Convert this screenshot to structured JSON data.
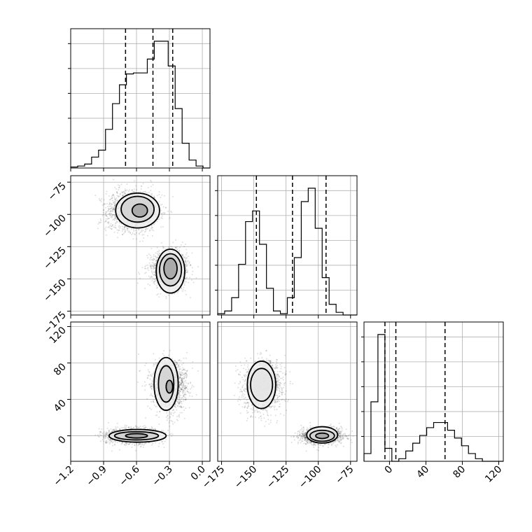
{
  "chart_data": {
    "type": "corner",
    "parameters": [
      {
        "range": [
          -1.2,
          0.07
        ],
        "ticks": [
          -1.2,
          -0.9,
          -0.6,
          -0.3,
          0.0
        ],
        "tick_labels": [
          "−1.2",
          "−0.9",
          "−0.6",
          "−0.3",
          "0.0"
        ],
        "quantiles": [
          -0.7,
          -0.45,
          -0.27
        ]
      },
      {
        "range": [
          -178,
          -70
        ],
        "ticks": [
          -175,
          -150,
          -125,
          -100,
          -75
        ],
        "tick_labels": [
          "−175",
          "−150",
          "−125",
          "−100",
          "−75"
        ],
        "quantiles": [
          -148,
          -120,
          -94
        ]
      },
      {
        "range": [
          -28,
          125
        ],
        "ticks": [
          0,
          40,
          80,
          120
        ],
        "tick_labels": [
          "0",
          "40",
          "80",
          "120"
        ],
        "quantiles": [
          -5,
          7,
          61
        ]
      }
    ],
    "histograms": [
      {
        "edges_start": -1.2,
        "bin_width": 0.0635,
        "counts": [
          1,
          2,
          4,
          11,
          18,
          39,
          65,
          84,
          95,
          96,
          96,
          110,
          128,
          128,
          103,
          60,
          25,
          8,
          2,
          0
        ]
      },
      {
        "edges_start": -178,
        "bin_width": 5.4,
        "counts": [
          1,
          3,
          13,
          38,
          70,
          78,
          53,
          20,
          3,
          1,
          13,
          43,
          85,
          95,
          65,
          28,
          8,
          2,
          0,
          0
        ]
      },
      {
        "edges_start": -28,
        "bin_width": 7.65,
        "counts": [
          3,
          23,
          49,
          5,
          0,
          1,
          4,
          7,
          10,
          13,
          15,
          15,
          12,
          9,
          6,
          3,
          1,
          0,
          0,
          0
        ]
      }
    ],
    "clusters": [
      {
        "mean": [
          -0.63,
          -97,
          0
        ],
        "sd": [
          0.12,
          8,
          4
        ]
      },
      {
        "mean": [
          -0.3,
          -143,
          55
        ],
        "sd": [
          0.08,
          7,
          13
        ]
      }
    ],
    "contours": {
      "1-0": [
        {
          "c": [
            -0.59,
            -97
          ],
          "r": [
            0.2,
            13.5
          ]
        },
        {
          "c": [
            -0.59,
            -96
          ],
          "r": [
            0.15,
            10
          ]
        },
        {
          "c": [
            -0.57,
            -97
          ],
          "r": [
            0.07,
            5
          ]
        },
        {
          "c": [
            -0.29,
            -144
          ],
          "r": [
            0.13,
            17
          ]
        },
        {
          "c": [
            -0.29,
            -143
          ],
          "r": [
            0.1,
            12.5
          ]
        },
        {
          "c": [
            -0.29,
            -142
          ],
          "r": [
            0.06,
            8
          ]
        }
      ],
      "2-0": [
        {
          "c": [
            -0.59,
            0
          ],
          "r": [
            0.26,
            7
          ]
        },
        {
          "c": [
            -0.6,
            0
          ],
          "r": [
            0.2,
            4.5
          ]
        },
        {
          "c": [
            -0.6,
            0
          ],
          "r": [
            0.1,
            2.4
          ]
        },
        {
          "c": [
            -0.33,
            57
          ],
          "r": [
            0.11,
            29
          ]
        },
        {
          "c": [
            -0.33,
            57
          ],
          "r": [
            0.07,
            20
          ]
        },
        {
          "c": [
            -0.3,
            54
          ],
          "r": [
            0.03,
            7
          ]
        }
      ],
      "2-1": [
        {
          "c": [
            -144,
            56
          ],
          "r": [
            11,
            26
          ]
        },
        {
          "c": [
            -144,
            56
          ],
          "r": [
            8.5,
            18
          ]
        },
        {
          "c": [
            -97,
            1
          ],
          "r": [
            12,
            9
          ]
        },
        {
          "c": [
            -97,
            0
          ],
          "r": [
            9.5,
            6
          ]
        },
        {
          "c": [
            -97,
            0
          ],
          "r": [
            5,
            3
          ]
        }
      ]
    }
  }
}
